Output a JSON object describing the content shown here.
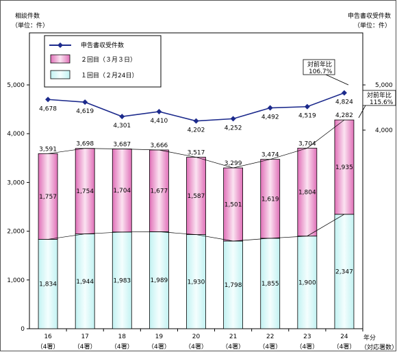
{
  "chart_data": {
    "type": "bar",
    "categories": [
      "16",
      "17",
      "18",
      "19",
      "20",
      "21",
      "22",
      "23",
      "24"
    ],
    "category_sublabels": [
      "（4署）",
      "（4署）",
      "（4署）",
      "（4署）",
      "（4署）",
      "（4署）",
      "（4署）",
      "（4署）",
      "（4署）"
    ],
    "xlabel_line1": "年分",
    "xlabel_line2": "（対応署数）",
    "left_axis": {
      "title_line1": "相談件数",
      "title_line2": "（単位：件）",
      "ylim": [
        0,
        5000
      ],
      "ticks": [
        0,
        1000,
        2000,
        3000,
        4000,
        5000
      ],
      "tick_labels": [
        "0",
        "1,000",
        "2,000",
        "3,000",
        "4,000",
        "5,000"
      ]
    },
    "right_axis": {
      "title_line1": "申告書収受件数",
      "title_line2": "（単位：件）",
      "tick_values": [
        4000,
        5000
      ],
      "tick_labels": [
        "4,000",
        "5,000"
      ]
    },
    "series": [
      {
        "name": "１回目（２月24日）",
        "kind": "stacked-bar",
        "color": "#d8f8f8",
        "values": [
          1834,
          1944,
          1983,
          1989,
          1930,
          1798,
          1855,
          1900,
          2347
        ],
        "labels": [
          "1,834",
          "1,944",
          "1,983",
          "1,989",
          "1,930",
          "1,798",
          "1,855",
          "1,900",
          "2,347"
        ]
      },
      {
        "name": "２回目（３月３日）",
        "kind": "stacked-bar",
        "color": "#e890c8",
        "values": [
          1757,
          1754,
          1704,
          1677,
          1587,
          1501,
          1619,
          1804,
          1935
        ],
        "labels": [
          "1,757",
          "1,754",
          "1,704",
          "1,677",
          "1,587",
          "1,501",
          "1,619",
          "1,804",
          "1,935"
        ]
      },
      {
        "name": "申告書収受件数",
        "kind": "line",
        "color": "#1c2a8c",
        "values": [
          4678,
          4619,
          4301,
          4410,
          4202,
          4252,
          4492,
          4519,
          4824
        ],
        "labels": [
          "4,678",
          "4,619",
          "4,301",
          "4,410",
          "4,202",
          "4,252",
          "4,492",
          "4,519",
          "4,824"
        ]
      }
    ],
    "bar_totals": [
      3591,
      3698,
      3687,
      3666,
      3517,
      3299,
      3474,
      3704,
      4282
    ],
    "bar_total_labels": [
      "3,591",
      "3,698",
      "3,687",
      "3,666",
      "3,517",
      "3,299",
      "3,474",
      "3,704",
      "4,282"
    ],
    "annotations": [
      {
        "id": "line-yoy",
        "line1": "対前年比",
        "line2": "106.7%"
      },
      {
        "id": "bar-yoy",
        "line1": "対前年比",
        "line2": "115.6%"
      }
    ],
    "legend_position": "top-left"
  }
}
